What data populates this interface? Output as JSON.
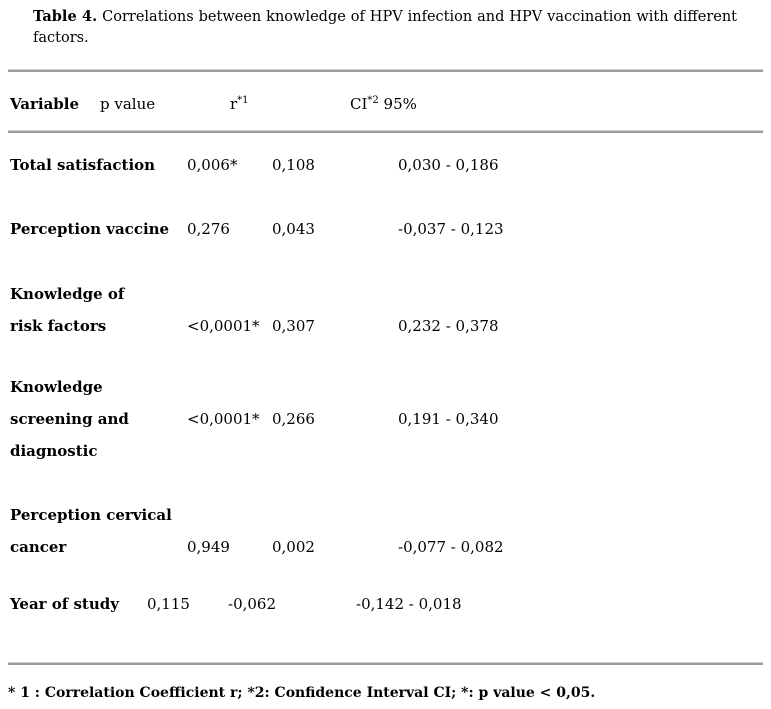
{
  "caption": {
    "label": "Table 4.",
    "line1_rest": " Correlations between knowledge of HPV infection and HPV vaccination with different",
    "line2": "factors."
  },
  "table": {
    "headers": {
      "variable": "Variable",
      "p_value": "p value",
      "r_base": "r",
      "r_sup": "*1",
      "ci_base": "CI",
      "ci_sup": "*2",
      "ci_suffix": " 95%"
    },
    "rows": [
      {
        "variable_lines": [
          "Total satisfaction"
        ],
        "p": "0,006*",
        "r": "0,108",
        "ci": "0,030 - 0,186"
      },
      {
        "variable_lines": [
          "Perception vaccine"
        ],
        "p": "0,276",
        "r": "0,043",
        "ci": "-0,037 - 0,123"
      },
      {
        "variable_lines": [
          "Knowledge of",
          "risk factors"
        ],
        "p": "<0,0001*",
        "r": "0,307",
        "ci": "0,232 - 0,378"
      },
      {
        "variable_lines": [
          "Knowledge",
          "screening and",
          "diagnostic"
        ],
        "p": "<0,0001*",
        "r": "0,266",
        "ci": "0,191 - 0,340"
      },
      {
        "variable_lines": [
          "Perception cervical",
          "cancer"
        ],
        "p": "0,949",
        "r": "0,002",
        "ci": "-0,077 - 0,082"
      },
      {
        "variable_lines": [
          "Year of study"
        ],
        "p": "0,115",
        "r": "-0,062",
        "ci": "-0,142 - 0,018"
      }
    ]
  },
  "footnote": "* 1 : Correlation Coefficient r; *2: Confidence Interval CI; *: p value < 0,05.",
  "colors": {
    "text": "#000000",
    "rule": "#9b9b9b",
    "background": "#ffffff"
  }
}
